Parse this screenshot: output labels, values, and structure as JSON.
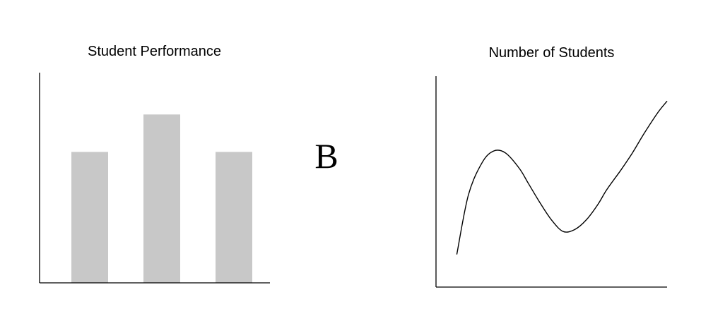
{
  "center_label": "B",
  "chart_data": [
    {
      "type": "bar",
      "title": "Student Performance",
      "xlabel": "",
      "ylabel": "",
      "categories": [
        "",
        "",
        ""
      ],
      "values": [
        0.7,
        0.9,
        0.7
      ],
      "ylim": [
        0,
        1
      ],
      "bar_color": "#c8c8c8",
      "axis_color": "#000000",
      "grid": false
    },
    {
      "type": "line",
      "title": "Number of Students",
      "xlabel": "",
      "ylabel": "",
      "x": [
        0.09,
        0.14,
        0.2,
        0.25,
        0.3,
        0.36,
        0.4,
        0.45,
        0.5,
        0.55,
        0.6,
        0.65,
        0.7,
        0.74,
        0.8,
        0.85,
        0.9,
        0.96,
        1.0
      ],
      "y": [
        0.17,
        0.48,
        0.65,
        0.71,
        0.7,
        0.62,
        0.54,
        0.44,
        0.35,
        0.29,
        0.3,
        0.35,
        0.43,
        0.51,
        0.61,
        0.7,
        0.8,
        0.91,
        0.97
      ],
      "xlim": [
        0,
        1
      ],
      "ylim": [
        0,
        1.1
      ],
      "line_color": "#000000",
      "axis_color": "#000000",
      "grid": false
    }
  ]
}
